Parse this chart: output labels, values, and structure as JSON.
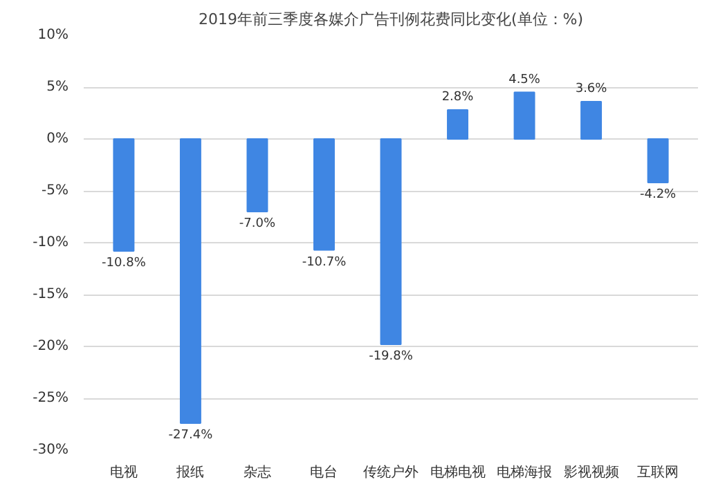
{
  "chart_data": {
    "type": "bar",
    "title": "2019年前三季度各媒介广告刊例花费同比变化(单位：%)",
    "categories": [
      "电视",
      "报纸",
      "杂志",
      "电台",
      "传统户外",
      "电梯电视",
      "电梯海报",
      "影视视频",
      "互联网"
    ],
    "values": [
      -10.8,
      -27.4,
      -7.0,
      -10.7,
      -19.8,
      2.8,
      4.5,
      3.6,
      -4.2
    ],
    "value_labels": [
      "-10.8%",
      "-27.4%",
      "-7.0%",
      "-10.7%",
      "-19.8%",
      "2.8%",
      "4.5%",
      "3.6%",
      "-4.2%"
    ],
    "color": "#3f86e3",
    "ylim": [
      -30,
      10
    ],
    "yticks": [
      {
        "value": -30,
        "label": "-30%"
      },
      {
        "value": -25,
        "label": "-25%"
      },
      {
        "value": -20,
        "label": "-20%"
      },
      {
        "value": -15,
        "label": "-15%"
      },
      {
        "value": -10,
        "label": "-10%"
      },
      {
        "value": -5,
        "label": "-5%"
      },
      {
        "value": 0,
        "label": "0%"
      },
      {
        "value": 5,
        "label": "5%"
      },
      {
        "value": 10,
        "label": "10%"
      }
    ],
    "grid": "y"
  }
}
